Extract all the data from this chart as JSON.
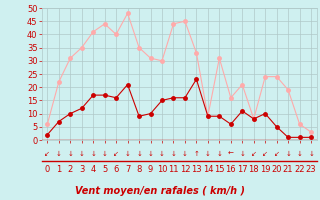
{
  "x": [
    0,
    1,
    2,
    3,
    4,
    5,
    6,
    7,
    8,
    9,
    10,
    11,
    12,
    13,
    14,
    15,
    16,
    17,
    18,
    19,
    20,
    21,
    22,
    23
  ],
  "wind_avg": [
    2,
    7,
    10,
    12,
    17,
    17,
    16,
    21,
    9,
    10,
    15,
    16,
    16,
    23,
    9,
    9,
    6,
    11,
    8,
    10,
    5,
    1,
    1,
    1
  ],
  "wind_gust": [
    6,
    22,
    31,
    35,
    41,
    44,
    40,
    48,
    35,
    31,
    30,
    44,
    45,
    33,
    9,
    31,
    16,
    21,
    8,
    24,
    24,
    19,
    6,
    3
  ],
  "ylim": [
    0,
    50
  ],
  "yticks": [
    0,
    5,
    10,
    15,
    20,
    25,
    30,
    35,
    40,
    45,
    50
  ],
  "xticks": [
    0,
    1,
    2,
    3,
    4,
    5,
    6,
    7,
    8,
    9,
    10,
    11,
    12,
    13,
    14,
    15,
    16,
    17,
    18,
    19,
    20,
    21,
    22,
    23
  ],
  "xlabel": "Vent moyen/en rafales ( km/h )",
  "bg_color": "#cff0f0",
  "grid_color": "#b0c8c8",
  "avg_color": "#cc0000",
  "gust_color": "#ffaaaa",
  "line_width": 0.8,
  "marker_size": 2.5,
  "xlabel_color": "#cc0000",
  "xlabel_fontsize": 7,
  "tick_color": "#cc0000",
  "tick_fontsize": 6,
  "arrow_color": "#cc0000",
  "arrows": [
    "↙",
    "↓",
    "↓",
    "↓",
    "↓",
    "↓",
    "↙",
    "↓↙",
    "↓",
    "↓",
    "↓",
    "↓",
    "↓",
    "↑",
    "↓",
    "↓",
    "←",
    "↓",
    "↙",
    "↙",
    "↙",
    "↓",
    "↓",
    "↓"
  ]
}
